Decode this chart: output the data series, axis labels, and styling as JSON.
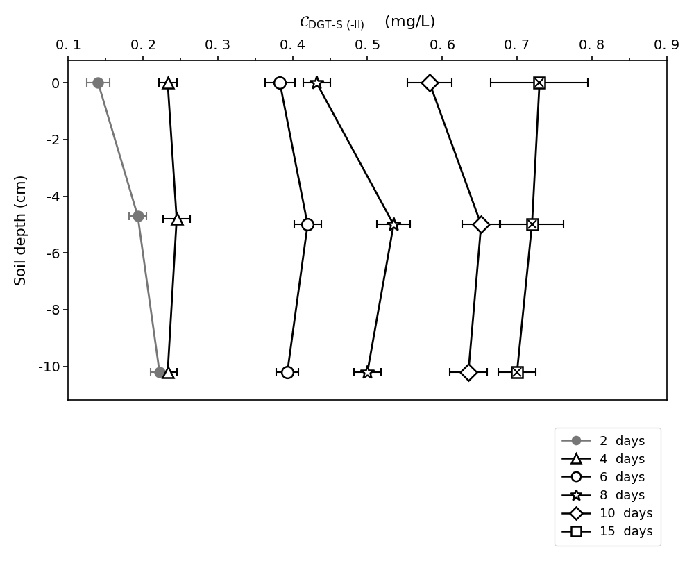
{
  "ylabel": "Soil depth (cm)",
  "xlim": [
    0.1,
    0.9
  ],
  "ylim": [
    -11.2,
    0.8
  ],
  "xticks": [
    0.1,
    0.2,
    0.3,
    0.4,
    0.5,
    0.6,
    0.7,
    0.8,
    0.9
  ],
  "yticks": [
    0,
    -2,
    -4,
    -6,
    -8,
    -10
  ],
  "series": [
    {
      "label": "2  days",
      "color": "#777777",
      "marker": "o",
      "fillstyle": "full",
      "markersize": 10,
      "linewidth": 2.0,
      "depths": [
        0,
        -4.7,
        -10.2
      ],
      "values": [
        0.14,
        0.193,
        0.222
      ],
      "xerr": [
        0.015,
        0.012,
        0.012
      ]
    },
    {
      "label": "4  days",
      "color": "#000000",
      "marker": "^",
      "fillstyle": "none",
      "markersize": 12,
      "linewidth": 2.0,
      "depths": [
        0,
        -4.8,
        -10.2
      ],
      "values": [
        0.233,
        0.245,
        0.233
      ],
      "xerr": [
        0.012,
        0.018,
        0.012
      ]
    },
    {
      "label": "6  days",
      "color": "#000000",
      "marker": "o",
      "fillstyle": "none",
      "markersize": 12,
      "linewidth": 2.0,
      "depths": [
        0,
        -5.0,
        -10.2
      ],
      "values": [
        0.383,
        0.42,
        0.393
      ],
      "xerr": [
        0.02,
        0.018,
        0.015
      ]
    },
    {
      "label": "8  days",
      "color": "#000000",
      "marker": "*",
      "fillstyle": "none",
      "markersize": 15,
      "linewidth": 2.0,
      "depths": [
        0,
        -5.0,
        -10.2
      ],
      "values": [
        0.432,
        0.535,
        0.5
      ],
      "xerr": [
        0.018,
        0.022,
        0.018
      ]
    },
    {
      "label": "10  days",
      "color": "#000000",
      "marker": "D",
      "fillstyle": "none",
      "markersize": 12,
      "linewidth": 2.0,
      "depths": [
        0,
        -5.0,
        -10.2
      ],
      "values": [
        0.583,
        0.652,
        0.635
      ],
      "xerr": [
        0.03,
        0.025,
        0.025
      ]
    },
    {
      "label": "15  days",
      "color": "#000000",
      "marker": "s",
      "fillstyle": "none",
      "markersize": 12,
      "linewidth": 2.0,
      "depths": [
        0,
        -5.0,
        -10.2
      ],
      "values": [
        0.73,
        0.72,
        0.7
      ],
      "xerr": [
        0.065,
        0.042,
        0.025
      ]
    }
  ],
  "figsize": [
    10.0,
    8.18
  ],
  "dpi": 100
}
